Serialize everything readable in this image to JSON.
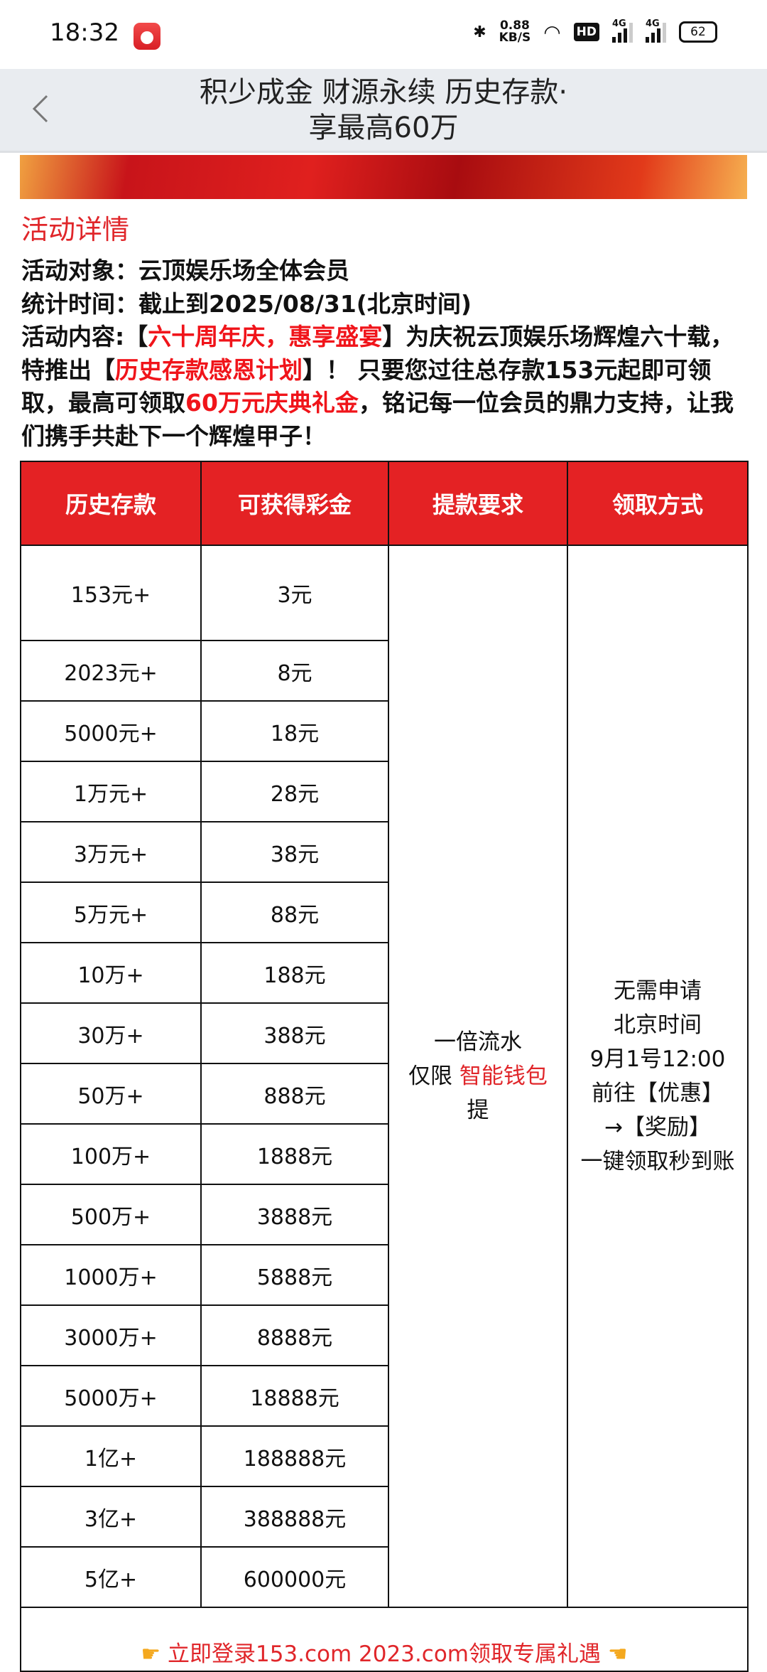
{
  "status_bar": {
    "time": "18:32",
    "speed_value": "0.88",
    "speed_unit": "KB/S",
    "hd": "HD",
    "net1": "4G",
    "net2": "4G",
    "battery": "62"
  },
  "header": {
    "title_line1": "积少成金 财源永续 历史存款·",
    "title_line2": "享最高60万",
    "back_icon": "chevron-left-icon"
  },
  "section_title": "活动详情",
  "details": {
    "target_label": "活动对象：",
    "target_value": "云顶娱乐场全体会员",
    "time_label": "统计时间：",
    "time_value": "截止到2025/08/31(北京时间)",
    "content_label": "活动内容:【",
    "content_red1": "六十周年庆，惠享盛宴",
    "content_p1": "】为庆祝云顶娱乐场辉煌六十载，特推出【",
    "content_red2": "历史存款感恩计划",
    "content_p2": "】！ 只要您过往总存款153元起即可领取，最高可领取",
    "content_red3": "60万元庆典礼金",
    "content_p3": "，铭记每一位会员的鼎力支持，让我们携手共赴下一个辉煌甲子！"
  },
  "table": {
    "headers": [
      "历史存款",
      "可获得彩金",
      "提款要求",
      "领取方式"
    ],
    "rows": [
      [
        "153元+",
        "3元"
      ],
      [
        "2023元+",
        "8元"
      ],
      [
        "5000元+",
        "18元"
      ],
      [
        "1万元+",
        "28元"
      ],
      [
        "3万元+",
        "38元"
      ],
      [
        "5万元+",
        "88元"
      ],
      [
        "10万+",
        "188元"
      ],
      [
        "30万+",
        "388元"
      ],
      [
        "50万+",
        "888元"
      ],
      [
        "100万+",
        "1888元"
      ],
      [
        "500万+",
        "3888元"
      ],
      [
        "1000万+",
        "5888元"
      ],
      [
        "3000万+",
        "8888元"
      ],
      [
        "5000万+",
        "18888元"
      ],
      [
        "1亿+",
        "188888元"
      ],
      [
        "3亿+",
        "388888元"
      ],
      [
        "5亿+",
        "600000元"
      ]
    ],
    "withdraw": {
      "line1": "一倍流水",
      "line2_prefix": "仅限 ",
      "line2_red": "智能钱包",
      "line3": "提"
    },
    "claim": {
      "lines": [
        "无需申请",
        "北京时间",
        "9月1号12:00",
        "前往【优惠】",
        "→【奖励】",
        "一键领取秒到账"
      ]
    },
    "footer": "立即登录153.com 2023.com领取专属礼遇"
  },
  "colors": {
    "accent": "#e42224",
    "header_bg": "#e9ecf0"
  }
}
